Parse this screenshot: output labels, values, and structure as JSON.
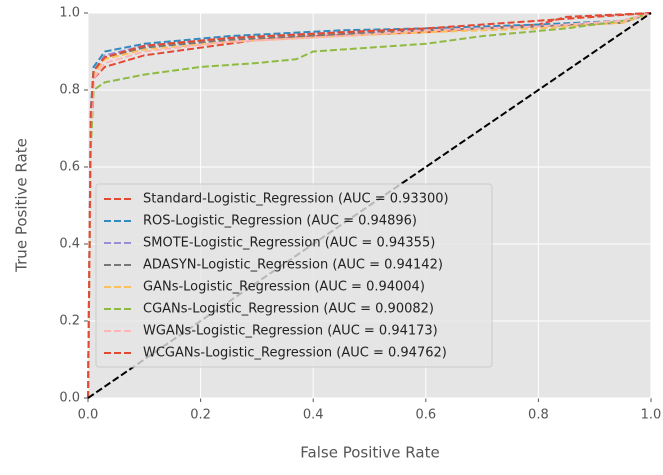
{
  "chart_data": {
    "type": "line",
    "xlabel": "False Positive Rate",
    "ylabel": "True Positive Rate",
    "xlim": [
      0,
      1
    ],
    "ylim": [
      0,
      1
    ],
    "xticks": [
      {
        "value": 0,
        "label": "0.0"
      },
      0.2,
      0.4,
      0.6,
      0.8,
      {
        "value": 1,
        "label": "1.0"
      }
    ],
    "yticks": [
      {
        "value": 0,
        "label": "0.0"
      },
      0.2,
      0.4,
      0.6,
      0.8,
      {
        "value": 1,
        "label": "1.0"
      }
    ],
    "grid": true,
    "legend": "lower left",
    "reference_line": {
      "x": [
        0,
        1
      ],
      "values": [
        0,
        1
      ],
      "color": "#000000"
    },
    "series": [
      {
        "name": "Standard-Logistic_Regression (AUC = 0.93300)",
        "color": "#E24A33",
        "x": [
          0,
          0.005,
          0.01,
          0.03,
          0.1,
          0.2,
          0.3,
          0.4,
          0.6,
          0.8,
          0.85,
          1
        ],
        "values": [
          0,
          0.7,
          0.83,
          0.86,
          0.89,
          0.91,
          0.93,
          0.94,
          0.95,
          0.97,
          0.99,
          1
        ]
      },
      {
        "name": "ROS-Logistic_Regression (AUC = 0.94896)",
        "color": "#348ABD",
        "x": [
          0,
          0.005,
          0.01,
          0.03,
          0.1,
          0.25,
          0.45,
          0.6,
          0.8,
          0.95,
          1
        ],
        "values": [
          0,
          0.75,
          0.86,
          0.9,
          0.92,
          0.94,
          0.955,
          0.96,
          0.97,
          0.98,
          1
        ]
      },
      {
        "name": "SMOTE-Logistic_Regression (AUC = 0.94355)",
        "color": "#988ED5",
        "x": [
          0,
          0.005,
          0.01,
          0.03,
          0.1,
          0.25,
          0.45,
          0.6,
          0.8,
          0.95,
          1
        ],
        "values": [
          0,
          0.73,
          0.85,
          0.89,
          0.915,
          0.935,
          0.95,
          0.955,
          0.965,
          0.975,
          1
        ]
      },
      {
        "name": "ADASYN-Logistic_Regression (AUC = 0.94142)",
        "color": "#777777",
        "x": [
          0,
          0.005,
          0.01,
          0.03,
          0.1,
          0.25,
          0.45,
          0.6,
          0.8,
          0.95,
          1
        ],
        "values": [
          0,
          0.72,
          0.85,
          0.885,
          0.91,
          0.93,
          0.945,
          0.955,
          0.965,
          0.975,
          1
        ]
      },
      {
        "name": "GANs-Logistic_Regression (AUC = 0.94004)",
        "color": "#FBC15E",
        "x": [
          0,
          0.005,
          0.01,
          0.03,
          0.1,
          0.25,
          0.45,
          0.6,
          0.8,
          0.95,
          1
        ],
        "values": [
          0,
          0.72,
          0.84,
          0.88,
          0.905,
          0.925,
          0.94,
          0.95,
          0.96,
          0.975,
          1
        ]
      },
      {
        "name": "CGANs-Logistic_Regression (AUC = 0.90082)",
        "color": "#8EBA42",
        "x": [
          0,
          0.005,
          0.01,
          0.03,
          0.1,
          0.2,
          0.3,
          0.37,
          0.4,
          0.5,
          0.6,
          0.7,
          0.85,
          0.95,
          1
        ],
        "values": [
          0,
          0.65,
          0.8,
          0.82,
          0.84,
          0.86,
          0.87,
          0.88,
          0.9,
          0.91,
          0.92,
          0.94,
          0.96,
          0.98,
          1
        ]
      },
      {
        "name": "WGANs-Logistic_Regression (AUC = 0.94173)",
        "color": "#FFB5B8",
        "x": [
          0,
          0.005,
          0.01,
          0.03,
          0.1,
          0.25,
          0.45,
          0.6,
          0.8,
          0.95,
          1
        ],
        "values": [
          0,
          0.7,
          0.83,
          0.87,
          0.9,
          0.925,
          0.94,
          0.955,
          0.965,
          0.98,
          1
        ]
      },
      {
        "name": "WCGANs-Logistic_Regression (AUC = 0.94762)",
        "color": "#E24A33",
        "x": [
          0,
          0.005,
          0.01,
          0.03,
          0.1,
          0.25,
          0.45,
          0.6,
          0.8,
          0.9,
          1
        ],
        "values": [
          0,
          0.74,
          0.85,
          0.885,
          0.915,
          0.935,
          0.95,
          0.96,
          0.98,
          0.99,
          1
        ]
      }
    ]
  }
}
